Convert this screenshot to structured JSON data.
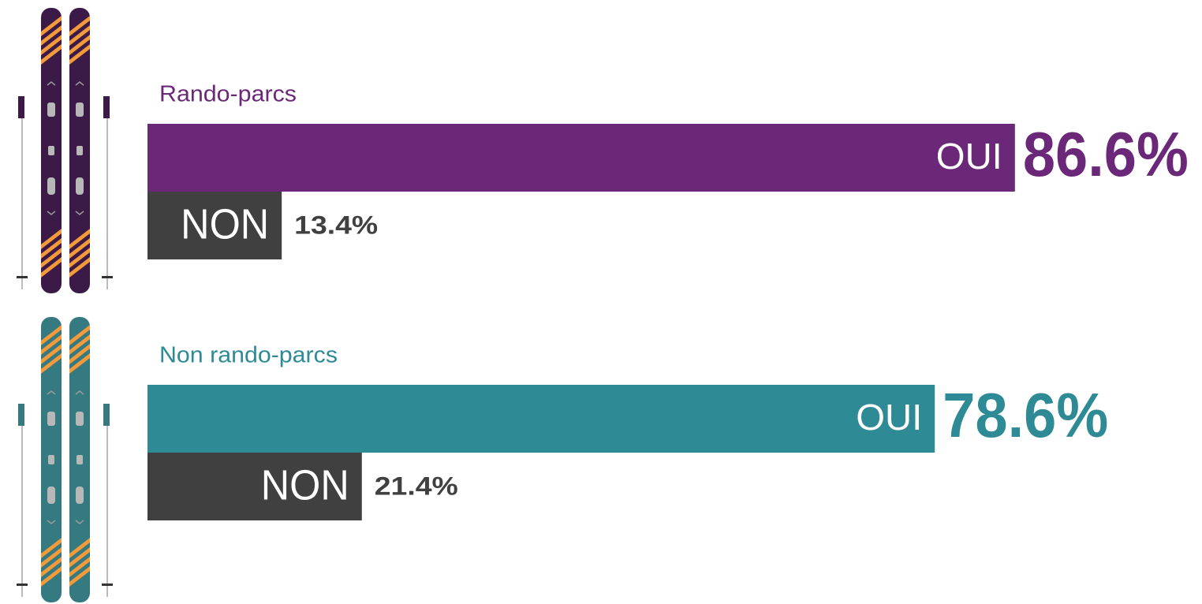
{
  "chart_data": [
    {
      "type": "bar",
      "orientation": "horizontal",
      "title": "Rando-parcs",
      "categories": [
        "OUI",
        "NON"
      ],
      "values": [
        86.6,
        13.4
      ],
      "value_labels": [
        "86.6%",
        "13.4%"
      ],
      "colors": [
        "#6b2878",
        "#404040"
      ],
      "xlim": [
        0,
        100
      ]
    },
    {
      "type": "bar",
      "orientation": "horizontal",
      "title": "Non rando-parcs",
      "categories": [
        "OUI",
        "NON"
      ],
      "values": [
        78.6,
        21.4
      ],
      "value_labels": [
        "78.6%",
        "21.4%"
      ],
      "colors": [
        "#2e8a94",
        "#404040"
      ],
      "xlim": [
        0,
        100
      ]
    }
  ]
}
